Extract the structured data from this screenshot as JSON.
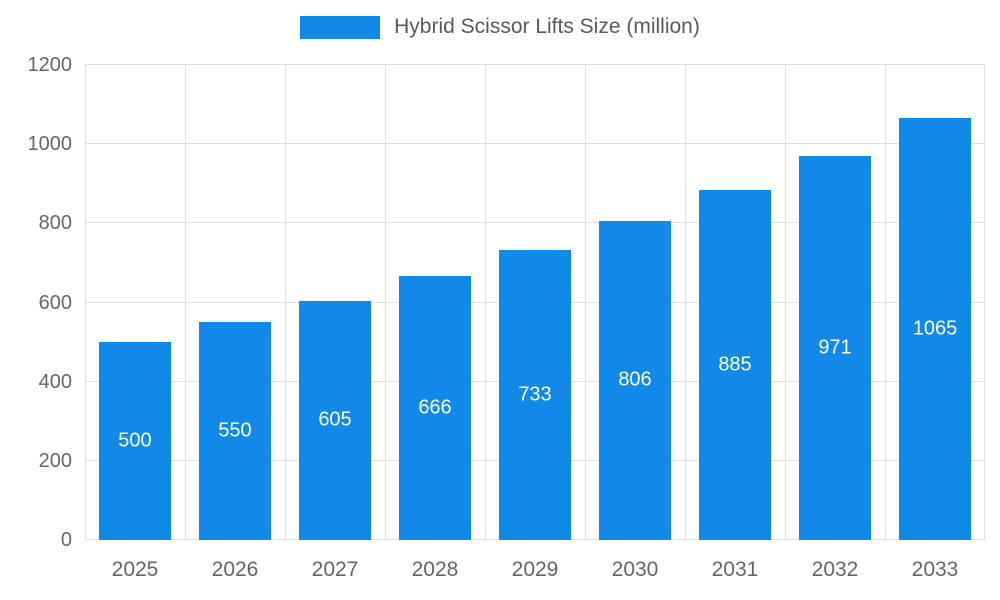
{
  "legend": {
    "label": "Hybrid Scissor Lifts Size (million)"
  },
  "colors": {
    "bar": "#1089E8",
    "grid": "#e0e0e0",
    "axis_text": "#666666",
    "legend_text": "#58595b",
    "bar_label": "#ffffff"
  },
  "chart_data": {
    "type": "bar",
    "title": "Hybrid Scissor Lifts Size (million)",
    "categories": [
      "2025",
      "2026",
      "2027",
      "2028",
      "2029",
      "2030",
      "2031",
      "2032",
      "2033"
    ],
    "values": [
      500,
      550,
      605,
      666,
      733,
      806,
      885,
      971,
      1065
    ],
    "xlabel": "",
    "ylabel": "",
    "ylim": [
      0,
      1200
    ],
    "yticks": [
      0,
      200,
      400,
      600,
      800,
      1000,
      1200
    ],
    "grid": true,
    "legend_position": "top",
    "data_labels": "inside-center"
  }
}
